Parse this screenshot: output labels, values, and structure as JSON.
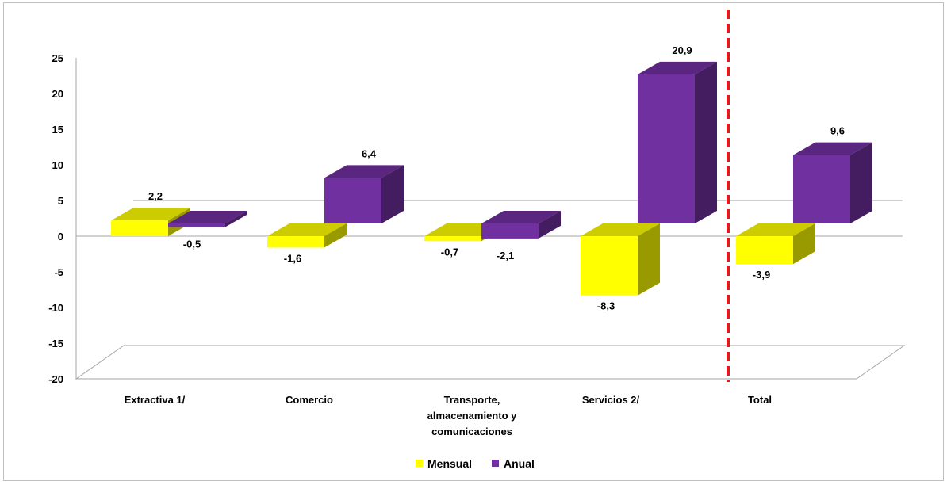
{
  "chart_data": {
    "type": "bar",
    "categories": [
      [
        "Extractiva 1/"
      ],
      [
        "Comercio"
      ],
      [
        "Transporte,",
        "almacenamiento  y",
        "comunicaciones"
      ],
      [
        "Servicios 2/"
      ],
      [
        "Total"
      ]
    ],
    "series": [
      {
        "name": "Mensual",
        "values": [
          2.2,
          -1.6,
          -0.7,
          -8.3,
          -3.9
        ],
        "labels": [
          "2,2",
          "-1,6",
          "-0,7",
          "-8,3",
          "-3,9"
        ],
        "color": "#ffff00"
      },
      {
        "name": "Anual",
        "values": [
          -0.5,
          6.4,
          -2.1,
          20.9,
          9.6
        ],
        "labels": [
          "-0,5",
          "6,4",
          "-2,1",
          "20,9",
          "9,6"
        ],
        "color": "#7030a0"
      }
    ],
    "ylim": [
      -20,
      25
    ],
    "yticks": [
      "25",
      "20",
      "15",
      "10",
      "5",
      "0",
      "-5",
      "-10",
      "-15",
      "-20"
    ],
    "yticks_values": [
      25,
      20,
      15,
      10,
      5,
      0,
      -5,
      -10,
      -15,
      -20
    ],
    "legend_position": "bottom",
    "divider": {
      "after_category": 3,
      "style": "dashed",
      "color": "#e31a1c"
    },
    "grid": false
  }
}
